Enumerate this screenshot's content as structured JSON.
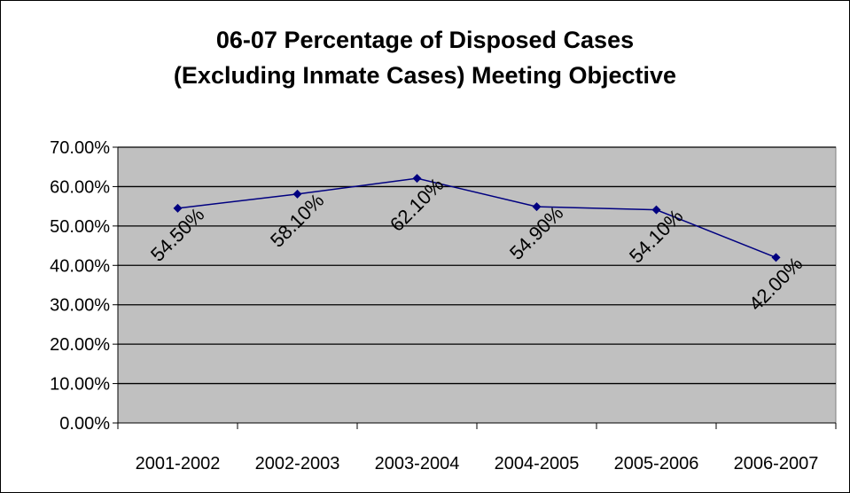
{
  "chart_data": {
    "type": "line",
    "title": [
      "06-07 Percentage of Disposed Cases",
      "(Excluding Inmate Cases) Meeting Objective"
    ],
    "categories": [
      "2001-2002",
      "2002-2003",
      "2003-2004",
      "2004-2005",
      "2005-2006",
      "2006-2007"
    ],
    "series": [
      {
        "values": [
          54.5,
          58.1,
          62.1,
          54.9,
          54.1,
          42.0
        ],
        "labels": [
          "54.50%",
          "58.10%",
          "62.10%",
          "54.90%",
          "54.10%",
          "42.00%"
        ],
        "color": "#000080",
        "marker": "diamond"
      }
    ],
    "ylim": [
      0,
      70
    ],
    "yticks": [
      0,
      10,
      20,
      30,
      40,
      50,
      60,
      70
    ],
    "ytick_labels": [
      "0.00%",
      "10.00%",
      "20.00%",
      "30.00%",
      "40.00%",
      "50.00%",
      "60.00%",
      "70.00%"
    ],
    "grid": true,
    "legend": "none",
    "plot_background": "#c0c0c0",
    "data_label_rotation": "-45deg"
  }
}
